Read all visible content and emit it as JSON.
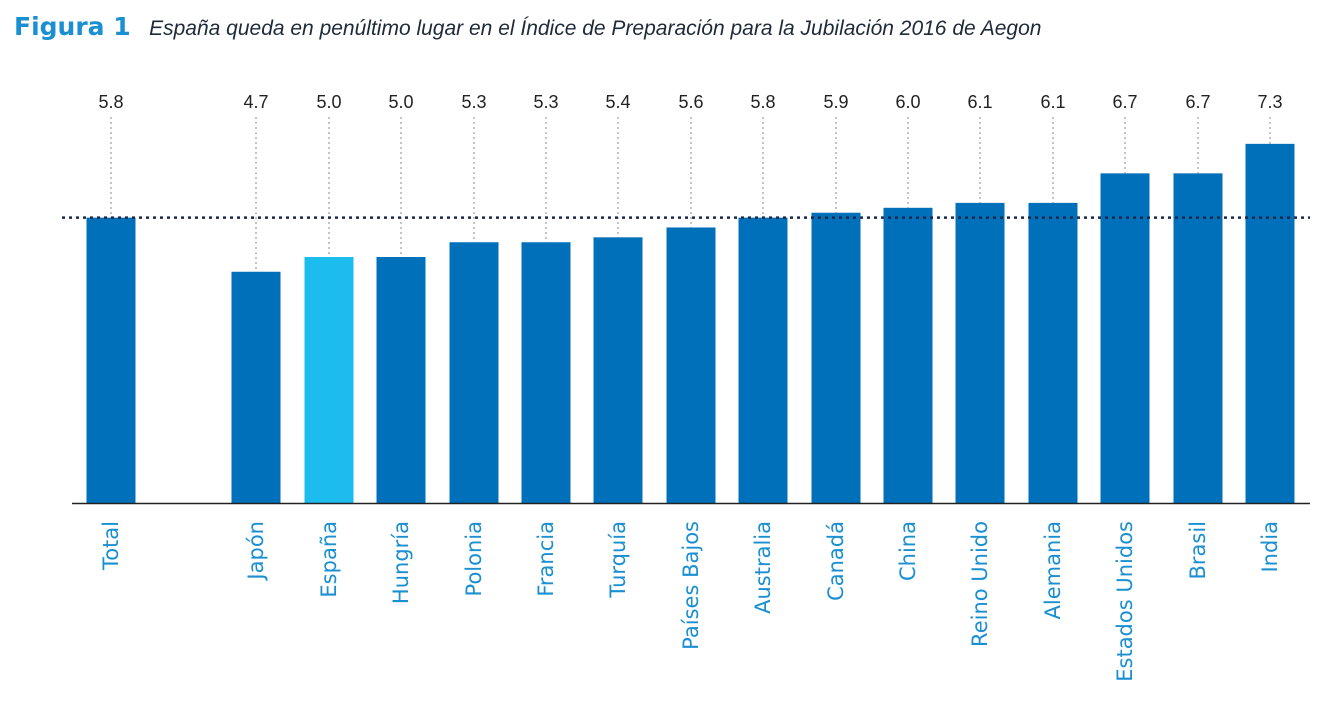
{
  "figure": {
    "label": "Figura 1",
    "title": "España queda en penúltimo lugar en el Índice de Preparación para la Jubilación 2016 de Aegon"
  },
  "chart_data": {
    "type": "bar",
    "title": "España queda en penúltimo lugar en el Índice de Preparación para la Jubilación 2016 de Aegon",
    "categories": [
      "Total",
      "Japón",
      "España",
      "Hungría",
      "Polonia",
      "Francia",
      "Turquía",
      "Países Bajos",
      "Australia",
      "Canadá",
      "China",
      "Reino Unido",
      "Alemania",
      "Estados Unidos",
      "Brasil",
      "India"
    ],
    "values": [
      5.8,
      4.7,
      5.0,
      5.0,
      5.3,
      5.3,
      5.4,
      5.6,
      5.8,
      5.9,
      6.0,
      6.1,
      6.1,
      6.7,
      6.7,
      7.3
    ],
    "value_labels": [
      "5.8",
      "4.7",
      "5.0",
      "5.0",
      "5.3",
      "5.3",
      "5.4",
      "5.6",
      "5.8",
      "5.9",
      "6.0",
      "6.1",
      "6.1",
      "6.7",
      "6.7",
      "7.3"
    ],
    "highlight": "España",
    "reference_line": {
      "value": 5.8,
      "style": "dotted"
    },
    "ylim": [
      0,
      8.9
    ],
    "xlabel": "",
    "ylabel": "",
    "grid": false,
    "colors": {
      "bar": "#0070bb",
      "highlight": "#1cbcee",
      "category_label": "#1a8fd1",
      "reference": "#1e2a4a",
      "value_label": "#222222",
      "leader": "#888888",
      "axis": "#222222"
    }
  }
}
